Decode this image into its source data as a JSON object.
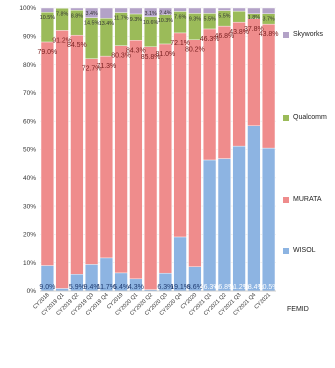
{
  "chart_data": {
    "type": "bar",
    "stacked": true,
    "percent": true,
    "ylim": [
      0,
      100
    ],
    "y_ticks": [
      "0%",
      "10%",
      "20%",
      "30%",
      "40%",
      "50%",
      "60%",
      "70%",
      "80%",
      "90%",
      "100%"
    ],
    "categories": [
      "CY2018",
      "CY2019 Q1",
      "CY2019 Q2",
      "CY2019 Q3",
      "CY2019 Q4",
      "CY2019",
      "CY2020 Q1",
      "CY2020 Q2",
      "CY2020 Q3",
      "CY2020 Q4",
      "CY2020",
      "CY2021 Q1",
      "CY2021 Q2",
      "CY2021 Q3",
      "CY2021 Q4",
      "CY2021"
    ],
    "series": [
      {
        "name": "WISOL",
        "color": "#8db4e2",
        "values": [
          9.0,
          0.9,
          5.9,
          9.4,
          11.7,
          6.4,
          4.3,
          0.5,
          6.3,
          19.1,
          8.6,
          46.3,
          46.8,
          51.2,
          58.4,
          50.5
        ],
        "labels": [
          "9.0%",
          "",
          "5.9%",
          "9.4%",
          "11.7%",
          "6.4%",
          "4.3%",
          "",
          "6.3%",
          "19.1%",
          "8.6%",
          "46.3%",
          "46.8%",
          "51.2%",
          "58.4%",
          "50.5%"
        ]
      },
      {
        "name": "MURATA",
        "color": "#ef8c8c",
        "values": [
          79.0,
          91.2,
          84.5,
          72.7,
          71.3,
          80.3,
          84.3,
          85.8,
          81.0,
          72.1,
          80.2,
          46.3,
          46.8,
          43.8,
          37.8,
          43.8
        ],
        "labels": [
          "79.0%",
          "91.2%",
          "84.5%",
          "72.7%",
          "71.3%",
          "80.3%",
          "84.3%",
          "85.8%",
          "81.0%",
          "72.1%",
          "80.2%",
          "46.3%",
          "46.8%",
          "43.8%",
          "37.8%",
          "43.8%"
        ]
      },
      {
        "name": "Qualcomm",
        "color": "#9bbb59",
        "values": [
          10.5,
          7.8,
          8.8,
          14.5,
          13.4,
          11.7,
          9.3,
          10.6,
          10.3,
          7.6,
          9.3,
          5.5,
          5.5,
          3.9,
          1.8,
          3.7
        ],
        "labels": [
          "10.5%",
          "7.8%",
          "8.8%",
          "14.5%",
          "13.4%",
          "11.7%",
          "9.3%",
          "10.6%",
          "10.3%",
          "7.6%",
          "9.3%",
          "5.5%",
          "5.5%",
          "",
          "1.8%",
          "3.7%"
        ]
      },
      {
        "name": "Skyworks",
        "color": "#b3a2c7",
        "values": [
          1.5,
          0.1,
          0.8,
          3.4,
          3.6,
          1.6,
          2.1,
          3.1,
          2.4,
          1.2,
          1.9,
          1.9,
          0.9,
          1.1,
          2.0,
          2.0
        ],
        "labels": [
          "",
          "",
          "",
          "3.4%",
          "",
          "",
          "",
          "3.1%",
          "2.4%",
          "",
          "",
          "",
          "",
          "",
          "",
          ""
        ]
      }
    ],
    "legend": {
      "position": "right",
      "order": [
        "Skyworks",
        "Qualcomm",
        "MURATA",
        "WISOL"
      ]
    },
    "extra_label": "FEMID"
  }
}
